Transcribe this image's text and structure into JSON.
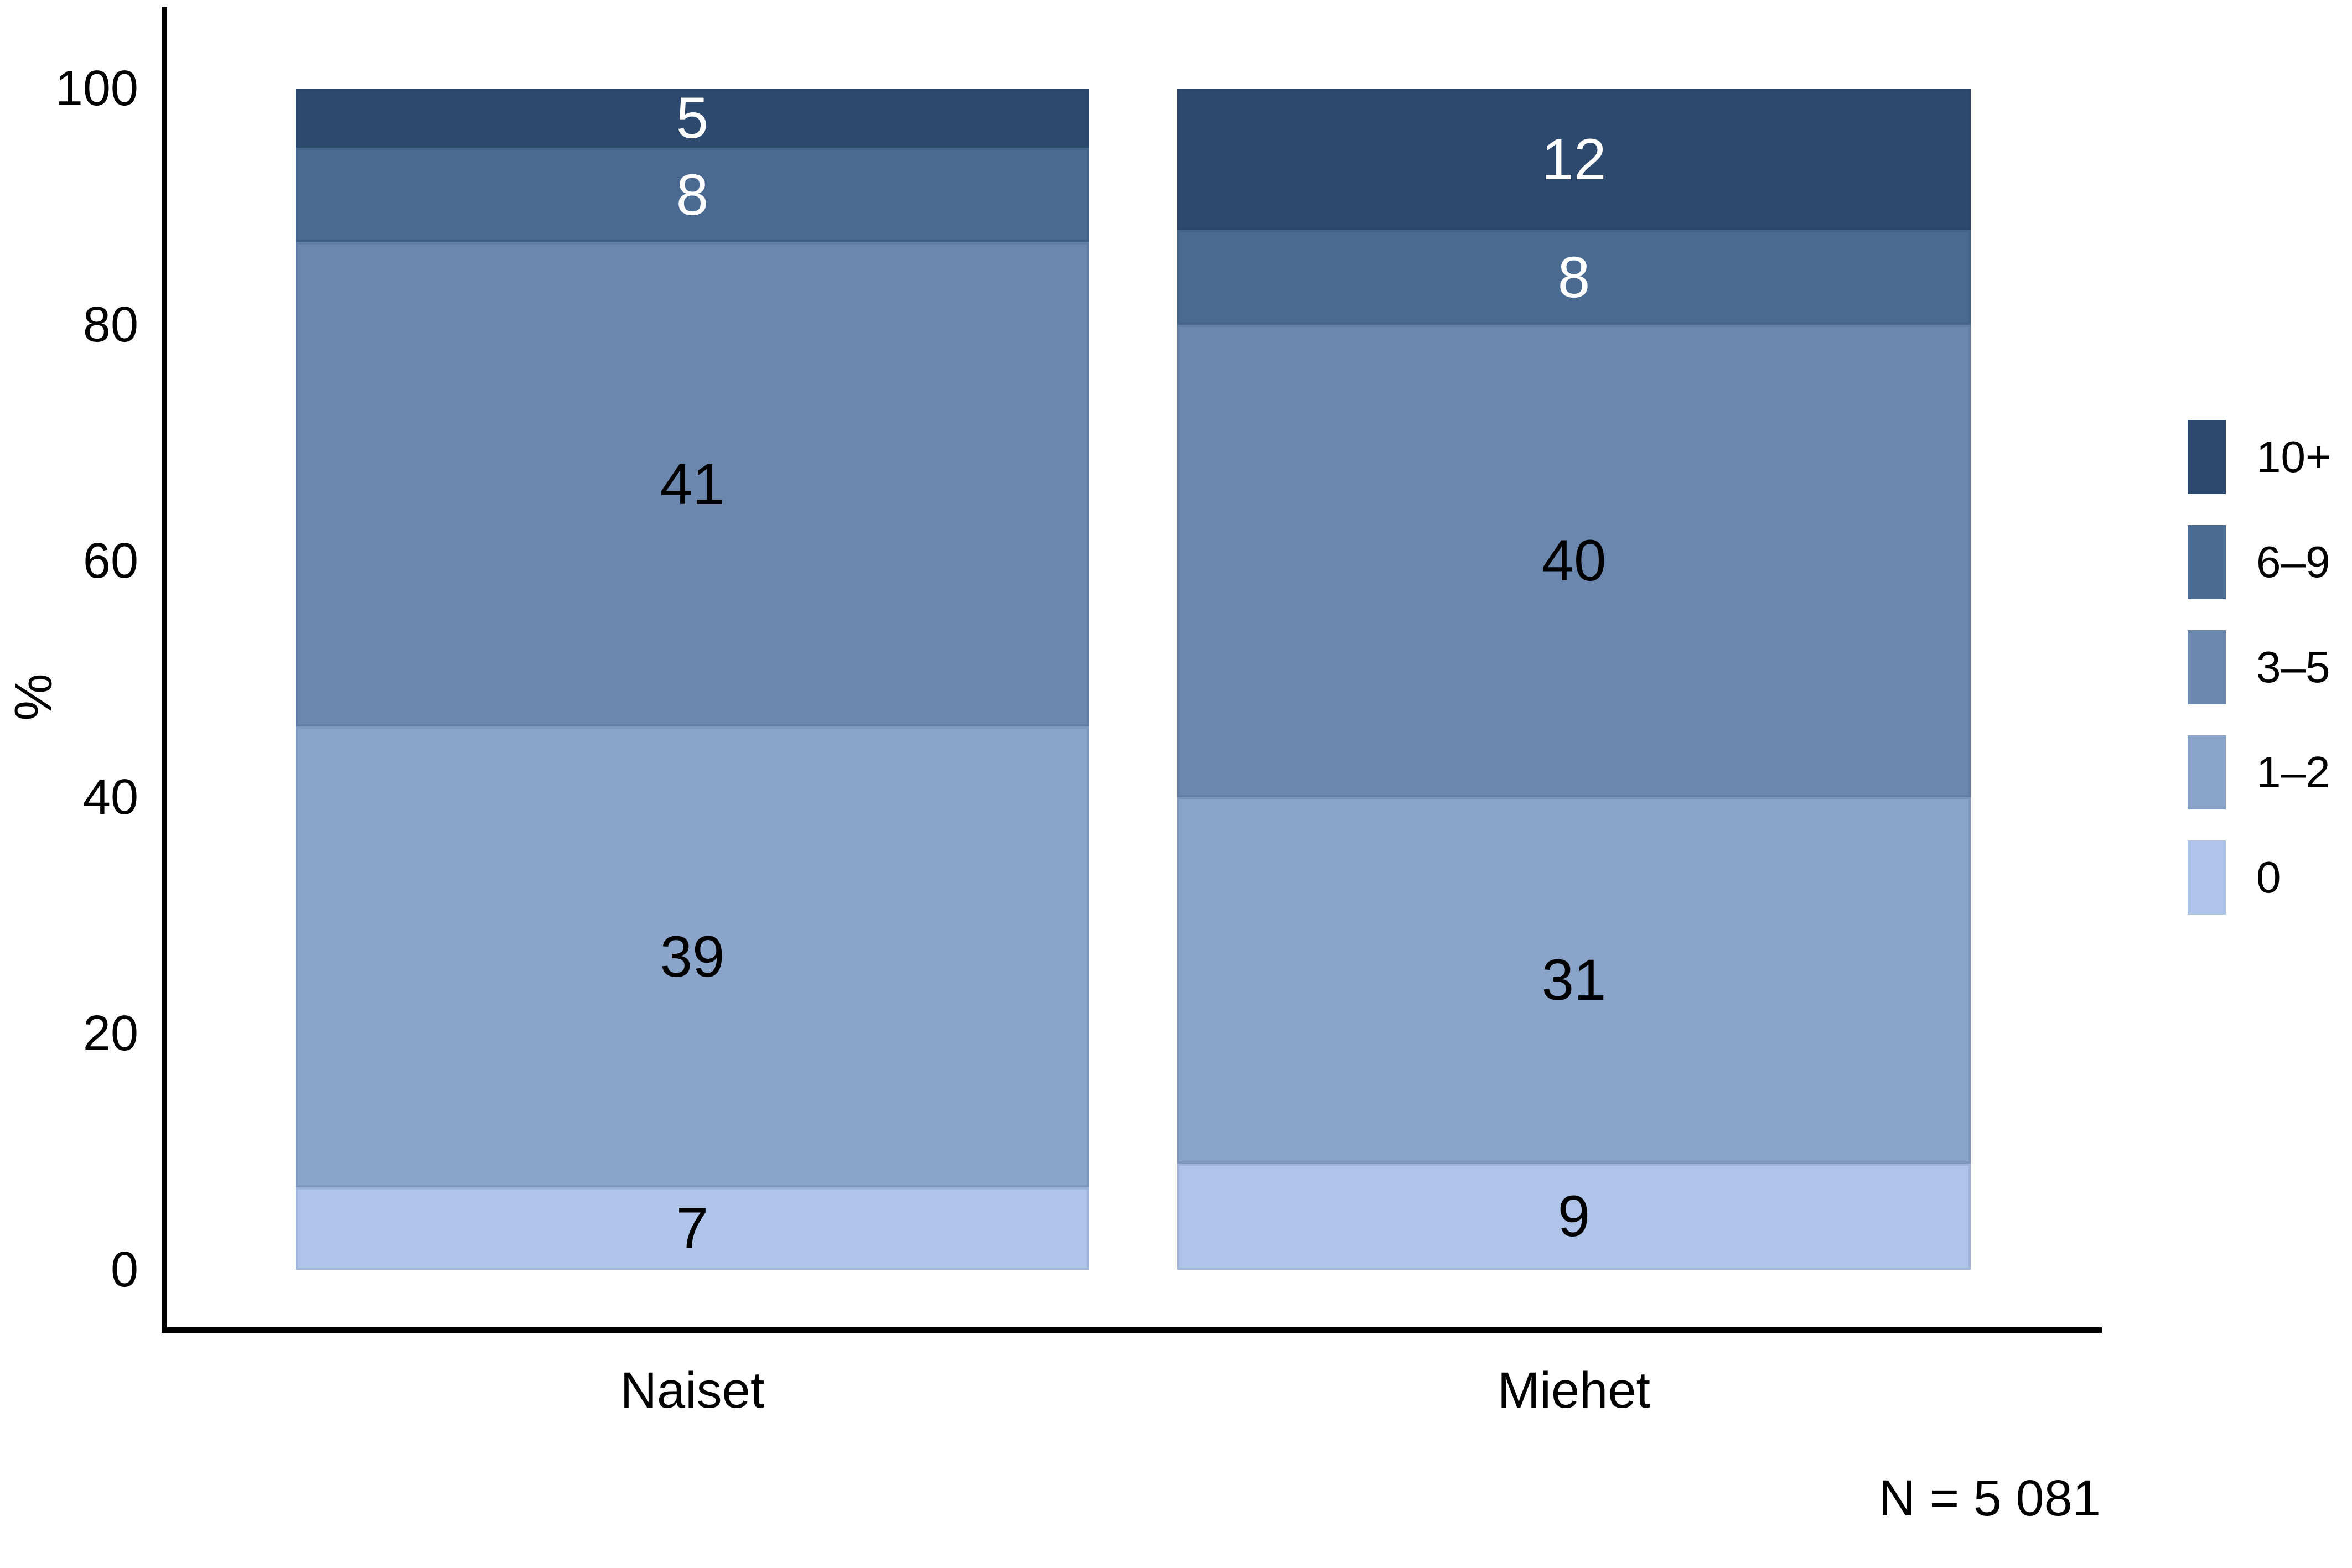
{
  "chart_data": {
    "type": "bar",
    "stacked": true,
    "orientation": "vertical",
    "title": "",
    "ylabel": "%",
    "xlabel": "",
    "categories": [
      "Naiset",
      "Miehet"
    ],
    "series": [
      {
        "name": "10+",
        "values": [
          5,
          12
        ],
        "color": "#2D4A6E",
        "label_color": "#FFFFFF"
      },
      {
        "name": "6–9",
        "values": [
          8,
          8
        ],
        "color": "#4A6A91",
        "label_color": "#FFFFFF"
      },
      {
        "name": "3–5",
        "values": [
          41,
          40
        ],
        "color": "#6B87AE",
        "label_color": "#000000"
      },
      {
        "name": "1–2",
        "values": [
          39,
          31
        ],
        "color": "#8BA4CA",
        "label_color": "#000000"
      },
      {
        "name": "0",
        "values": [
          7,
          9
        ],
        "color": "#AEC5E9",
        "label_color": "#000000"
      }
    ],
    "y_ticks": [
      0,
      20,
      40,
      60,
      80,
      100
    ],
    "ylim": [
      0,
      100
    ],
    "grid": false,
    "legend_position": "right",
    "legend_order_top_to_bottom": [
      "10+",
      "6–9",
      "3–5",
      "1–2",
      "0"
    ],
    "axis_color": "#000000",
    "background_color": "#FFFFFF",
    "note": "N = 5 081"
  }
}
